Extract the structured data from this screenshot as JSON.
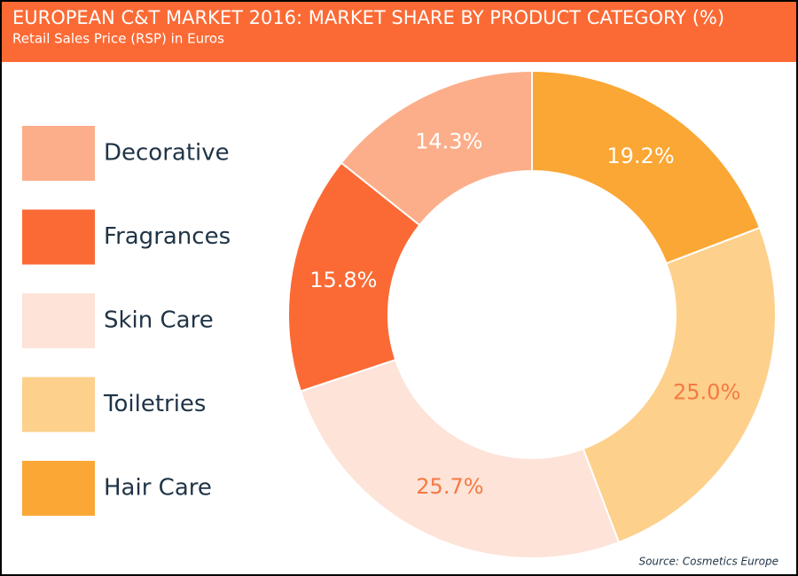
{
  "chart_data": {
    "type": "donut",
    "title": "EUROPEAN C&T MARKET 2016: MARKET SHARE BY PRODUCT CATEGORY (%)",
    "subtitle": "Retail Sales Price (RSP) in Euros",
    "source": "Source: Cosmetics Europe",
    "categories": [
      "Decorative",
      "Fragrances",
      "Skin Care",
      "Toiletries",
      "Hair Care"
    ],
    "values": [
      14.3,
      15.8,
      25.7,
      25.0,
      19.2
    ],
    "value_labels": [
      "14.3%",
      "15.8%",
      "25.7%",
      "25.0%",
      "19.2%"
    ],
    "colors": [
      "#fcae8a",
      "#fb6a35",
      "#fde3d8",
      "#fdd08c",
      "#fba735"
    ],
    "label_colors": [
      "#ffffff",
      "#ffffff",
      "#f47a43",
      "#f47a43",
      "#ffffff"
    ],
    "legend": "left"
  }
}
